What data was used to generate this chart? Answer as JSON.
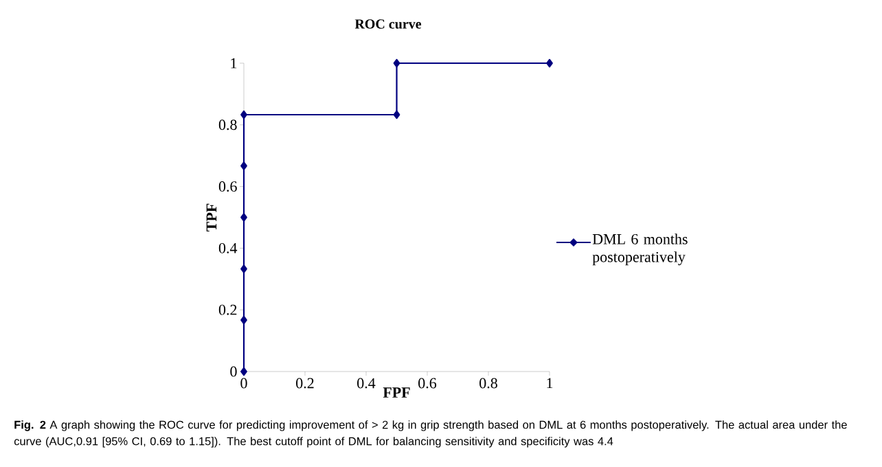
{
  "chart_data": {
    "type": "line",
    "title": "ROC curve",
    "xlabel": "FPF",
    "ylabel": "TPF",
    "x": [
      0,
      0,
      0,
      0,
      0,
      0,
      0.5,
      0.5,
      1
    ],
    "series": [
      {
        "name": "DML 6 months postoperatively",
        "color": "#000080",
        "values": [
          0,
          0.167,
          0.333,
          0.5,
          0.667,
          0.833,
          0.833,
          1,
          1
        ]
      }
    ],
    "xlim": [
      0,
      1
    ],
    "ylim": [
      0,
      1
    ],
    "xticks": [
      0,
      0.2,
      0.4,
      0.6,
      0.8,
      1
    ],
    "yticks": [
      0,
      0.2,
      0.4,
      0.6,
      0.8,
      1
    ],
    "marker": "diamond",
    "legend": "right",
    "annotations": [
      "**Fig. 2**  A graph showing the ROC curve for predicting improvement of > 2 kg in grip strength based on DML at 6 months postoperatively. The actual area under the curve (AUC,0.91 [95% CI, 0.69 to 1.15]). The best cutoff point of DML for balancing sensitivity and specificity was 4.4"
    ]
  }
}
